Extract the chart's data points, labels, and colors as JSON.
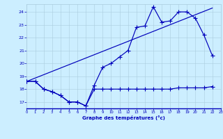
{
  "xlabel": "Graphe des températures (°c)",
  "bg_color": "#cceeff",
  "grid_color": "#aaccdd",
  "line_color": "#0000bb",
  "xlim": [
    0,
    23
  ],
  "ylim": [
    16.5,
    24.6
  ],
  "yticks": [
    17,
    18,
    19,
    20,
    21,
    22,
    23,
    24
  ],
  "xticks": [
    0,
    1,
    2,
    3,
    4,
    5,
    6,
    7,
    8,
    9,
    10,
    11,
    12,
    13,
    14,
    15,
    16,
    17,
    18,
    19,
    20,
    21,
    22,
    23
  ],
  "hours": [
    0,
    1,
    2,
    3,
    4,
    5,
    6,
    7,
    8,
    9,
    10,
    11,
    12,
    13,
    14,
    15,
    16,
    17,
    18,
    19,
    20,
    21,
    22
  ],
  "temp_curve": [
    18.6,
    18.6,
    18.0,
    17.8,
    17.5,
    17.0,
    17.0,
    16.7,
    18.3,
    19.7,
    20.0,
    20.5,
    21.0,
    22.8,
    22.9,
    24.4,
    23.2,
    23.3,
    24.0,
    24.0,
    23.5,
    22.2,
    20.6
  ],
  "dew_curve": [
    18.6,
    18.6,
    18.0,
    17.8,
    17.5,
    17.0,
    17.0,
    16.7,
    18.0,
    18.0,
    18.0,
    18.0,
    18.0,
    18.0,
    18.0,
    18.0,
    18.0,
    18.0,
    18.1,
    18.1,
    18.1,
    18.1,
    18.2
  ],
  "trend_x": [
    0,
    22
  ],
  "trend_y": [
    18.6,
    24.3
  ],
  "marker_style": "+",
  "marker_size": 4,
  "linewidth": 0.85
}
